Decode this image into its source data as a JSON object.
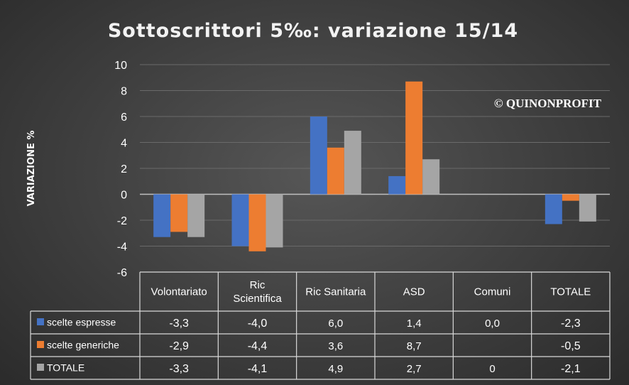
{
  "chart_data": {
    "type": "bar",
    "title": "Sottoscrittori 5‰: variazione 15/14",
    "ylabel": "VARIAZIONE %",
    "ylim": [
      -6,
      10
    ],
    "yticks": [
      "10",
      "8",
      "6",
      "4",
      "2",
      "0",
      "-2",
      "-4",
      "-6"
    ],
    "ytick_values": [
      10,
      8,
      6,
      4,
      2,
      0,
      -2,
      -4,
      -6
    ],
    "grid": true,
    "legend": "data-table",
    "categories": [
      [
        "Volontariato"
      ],
      [
        "Ric",
        "Scientifica"
      ],
      [
        "Ric Sanitaria"
      ],
      [
        "ASD"
      ],
      [
        "Comuni"
      ],
      [
        "TOTALE"
      ]
    ],
    "series": [
      {
        "name": "scelte espresse",
        "color": "#4472c4",
        "values": [
          -3.3,
          -4.0,
          6.0,
          1.4,
          0.0,
          -2.3
        ],
        "labels": [
          "-3,3",
          "-4,0",
          "6,0",
          "1,4",
          "0,0",
          "-2,3"
        ]
      },
      {
        "name": "scelte generiche",
        "color": "#ed7d31",
        "values": [
          -2.9,
          -4.4,
          3.6,
          8.7,
          null,
          -0.5
        ],
        "labels": [
          "-2,9",
          "-4,4",
          "3,6",
          "8,7",
          "",
          "-0,5"
        ]
      },
      {
        "name": "TOTALE",
        "color": "#a5a5a5",
        "values": [
          -3.3,
          -4.1,
          4.9,
          2.7,
          0,
          -2.1
        ],
        "labels": [
          "-3,3",
          "-4,1",
          "4,9",
          "2,7",
          "0",
          "-2,1"
        ]
      }
    ],
    "watermark": "© QUINONPROFIT"
  }
}
